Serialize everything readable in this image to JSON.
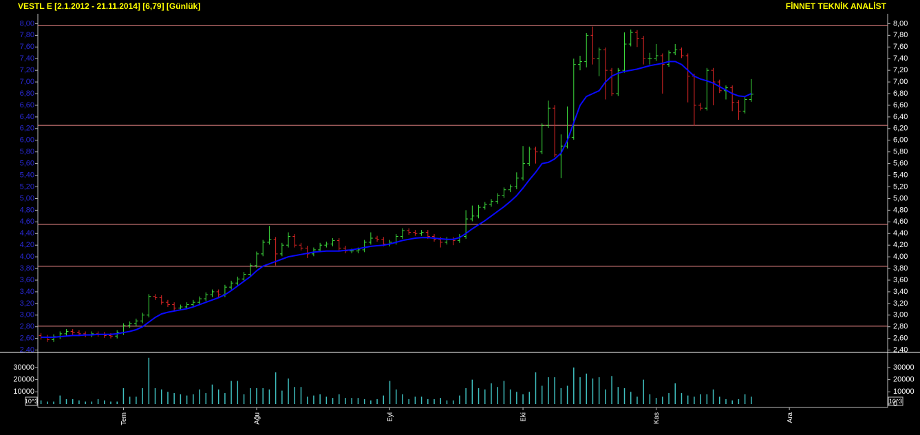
{
  "chart_data": [
    {
      "type": "ohlc",
      "title": "VESTL E  [2.1.2012 - 21.11.2014]  [6,79]  [Günlük]",
      "source": "FİNNET TEKNİK ANALİST",
      "categories": [
        null,
        null,
        null,
        null,
        null,
        null,
        null,
        null,
        null,
        null,
        null,
        null,
        null,
        "Tem",
        null,
        null,
        null,
        null,
        null,
        null,
        null,
        null,
        null,
        null,
        null,
        null,
        null,
        null,
        null,
        null,
        null,
        null,
        null,
        null,
        "Ağu",
        null,
        null,
        null,
        null,
        null,
        null,
        null,
        null,
        null,
        null,
        null,
        null,
        null,
        null,
        null,
        null,
        null,
        null,
        null,
        null,
        "Eyl",
        null,
        null,
        null,
        null,
        null,
        null,
        null,
        null,
        null,
        null,
        null,
        null,
        null,
        null,
        null,
        null,
        null,
        null,
        null,
        null,
        "Eki",
        null,
        null,
        null,
        null,
        null,
        null,
        null,
        null,
        null,
        null,
        null,
        null,
        null,
        null,
        null,
        null,
        null,
        null,
        null,
        null,
        "Kas",
        null,
        null,
        null,
        null,
        null,
        null,
        null,
        null,
        null,
        null,
        null,
        null,
        null,
        null,
        null,
        null,
        null,
        null,
        null,
        null,
        "Ara",
        null,
        null,
        null,
        null,
        null,
        null,
        null,
        null,
        null,
        null,
        null,
        null,
        null,
        null,
        null
      ],
      "open": [
        2.65,
        2.62,
        2.58,
        2.63,
        2.68,
        2.72,
        2.7,
        2.68,
        2.66,
        2.68,
        2.67,
        2.65,
        2.64,
        2.7,
        2.82,
        2.85,
        2.9,
        3.0,
        3.32,
        3.3,
        3.22,
        3.18,
        3.12,
        3.14,
        3.18,
        3.22,
        3.28,
        3.35,
        3.4,
        3.35,
        3.48,
        3.55,
        3.62,
        3.7,
        3.85,
        4.05,
        4.25,
        4.3,
        4.05,
        4.2,
        4.35,
        4.2,
        4.15,
        4.05,
        4.12,
        4.2,
        4.22,
        4.28,
        4.15,
        4.1,
        4.1,
        4.12,
        4.25,
        4.32,
        4.3,
        4.22,
        4.25,
        4.35,
        4.45,
        4.42,
        4.4,
        4.42,
        4.35,
        4.3,
        4.25,
        4.3,
        4.28,
        4.35,
        4.65,
        4.7,
        4.85,
        4.9,
        4.95,
        5.05,
        5.15,
        5.2,
        5.35,
        5.6,
        5.85,
        5.8,
        6.25,
        6.55,
        5.75,
        5.9,
        6.05,
        7.3,
        7.35,
        7.8,
        7.4,
        7.55,
        7.2,
        6.8,
        7.2,
        7.65,
        7.85,
        7.75,
        7.4,
        7.4,
        7.45,
        7.3,
        7.5,
        7.55,
        7.45,
        7.1,
        6.6,
        6.55,
        7.2,
        7.0,
        6.85,
        6.9,
        6.65,
        6.5,
        6.7,
        null,
        null,
        null,
        null,
        null,
        null,
        null,
        null,
        null,
        null,
        null,
        null,
        null,
        null,
        null,
        null,
        null,
        null,
        null,
        null,
        null
      ],
      "high": [
        2.69,
        2.66,
        2.67,
        2.72,
        2.76,
        2.76,
        2.74,
        2.72,
        2.72,
        2.72,
        2.71,
        2.69,
        2.74,
        2.86,
        2.89,
        2.94,
        3.04,
        3.36,
        3.36,
        3.34,
        3.26,
        3.22,
        3.18,
        3.22,
        3.26,
        3.32,
        3.39,
        3.44,
        3.44,
        3.52,
        3.59,
        3.66,
        3.74,
        3.89,
        4.09,
        4.29,
        4.53,
        4.34,
        4.24,
        4.42,
        4.39,
        4.24,
        4.19,
        4.16,
        4.24,
        4.26,
        4.32,
        4.32,
        4.19,
        4.14,
        4.16,
        4.29,
        4.42,
        4.36,
        4.34,
        4.29,
        4.39,
        4.49,
        4.49,
        4.46,
        4.46,
        4.46,
        4.39,
        4.34,
        4.34,
        4.34,
        4.39,
        4.8,
        4.88,
        4.89,
        4.94,
        4.99,
        5.09,
        5.19,
        5.24,
        5.45,
        5.9,
        5.89,
        5.89,
        6.29,
        6.68,
        6.6,
        6.1,
        6.58,
        7.4,
        7.45,
        7.84,
        7.95,
        7.59,
        7.59,
        7.24,
        7.24,
        7.85,
        7.9,
        7.89,
        7.79,
        7.5,
        7.65,
        7.49,
        7.54,
        7.65,
        7.59,
        7.49,
        7.14,
        6.64,
        7.24,
        7.24,
        7.04,
        6.94,
        6.94,
        6.69,
        6.74,
        7.05,
        null,
        null,
        null,
        null,
        null,
        null,
        null,
        null,
        null,
        null,
        null,
        null,
        null,
        null,
        null,
        null,
        null,
        null,
        null,
        null,
        null
      ],
      "low": [
        2.58,
        2.54,
        2.54,
        2.59,
        2.64,
        2.66,
        2.64,
        2.62,
        2.62,
        2.63,
        2.61,
        2.6,
        2.6,
        2.66,
        2.78,
        2.81,
        2.86,
        2.96,
        3.26,
        3.18,
        3.14,
        3.08,
        3.08,
        3.1,
        3.14,
        3.18,
        3.24,
        3.31,
        3.31,
        3.31,
        3.44,
        3.51,
        3.58,
        3.66,
        3.81,
        4.01,
        4.21,
        3.85,
        4.01,
        4.16,
        4.16,
        4.11,
        3.98,
        4.01,
        4.08,
        4.16,
        4.18,
        4.11,
        4.06,
        4.06,
        4.06,
        4.08,
        4.21,
        4.26,
        4.18,
        4.18,
        4.21,
        4.31,
        4.38,
        4.36,
        4.36,
        4.31,
        4.26,
        4.16,
        4.21,
        4.2,
        4.24,
        4.31,
        4.61,
        4.66,
        4.81,
        4.86,
        4.91,
        5.01,
        5.11,
        5.16,
        5.31,
        5.56,
        5.6,
        5.76,
        6.21,
        5.71,
        5.35,
        5.86,
        6.01,
        7.2,
        7.25,
        7.3,
        7.1,
        6.7,
        6.76,
        6.76,
        7.16,
        7.61,
        7.6,
        7.3,
        7.3,
        7.36,
        6.8,
        7.26,
        7.46,
        7.41,
        6.65,
        6.25,
        6.51,
        6.51,
        6.6,
        6.81,
        6.7,
        6.5,
        6.35,
        6.46,
        6.66,
        null,
        null,
        null,
        null,
        null,
        null,
        null,
        null,
        null,
        null,
        null,
        null,
        null,
        null,
        null,
        null,
        null,
        null,
        null,
        null,
        null
      ],
      "close": [
        2.62,
        2.58,
        2.63,
        2.68,
        2.72,
        2.7,
        2.68,
        2.66,
        2.68,
        2.67,
        2.65,
        2.64,
        2.7,
        2.82,
        2.85,
        2.9,
        3.0,
        3.32,
        3.3,
        3.22,
        3.18,
        3.12,
        3.14,
        3.18,
        3.22,
        3.28,
        3.35,
        3.4,
        3.35,
        3.48,
        3.55,
        3.62,
        3.7,
        3.85,
        4.05,
        4.25,
        4.3,
        4.05,
        4.2,
        4.35,
        4.2,
        4.15,
        4.05,
        4.12,
        4.2,
        4.22,
        4.28,
        4.15,
        4.1,
        4.1,
        4.12,
        4.25,
        4.32,
        4.3,
        4.22,
        4.25,
        4.35,
        4.45,
        4.42,
        4.4,
        4.42,
        4.35,
        4.3,
        4.25,
        4.3,
        4.28,
        4.35,
        4.65,
        4.7,
        4.85,
        4.9,
        4.95,
        5.05,
        5.15,
        5.2,
        5.35,
        5.6,
        5.85,
        5.8,
        6.25,
        6.55,
        5.75,
        5.9,
        6.05,
        7.3,
        7.35,
        7.8,
        7.4,
        7.55,
        7.2,
        6.8,
        7.2,
        7.65,
        7.85,
        7.75,
        7.4,
        7.4,
        7.45,
        7.3,
        7.5,
        7.55,
        7.45,
        7.1,
        6.6,
        6.55,
        7.2,
        7.0,
        6.85,
        6.9,
        6.65,
        6.5,
        6.7,
        6.79,
        null,
        null,
        null,
        null,
        null,
        null,
        null,
        null,
        null,
        null,
        null,
        null,
        null,
        null,
        null,
        null,
        null,
        null,
        null,
        null,
        null
      ],
      "up_color": "#3ee03e",
      "down_color": "#e02626",
      "moving_average": {
        "color": "#0a0aff",
        "values": [
          2.62,
          2.62,
          2.62,
          2.63,
          2.64,
          2.65,
          2.65,
          2.66,
          2.66,
          2.67,
          2.67,
          2.67,
          2.68,
          2.7,
          2.72,
          2.75,
          2.8,
          2.88,
          2.96,
          3.02,
          3.05,
          3.07,
          3.09,
          3.11,
          3.14,
          3.18,
          3.22,
          3.26,
          3.3,
          3.35,
          3.42,
          3.5,
          3.58,
          3.66,
          3.76,
          3.84,
          3.88,
          3.92,
          3.96,
          4.0,
          4.02,
          4.04,
          4.06,
          4.08,
          4.09,
          4.1,
          4.1,
          4.1,
          4.11,
          4.12,
          4.14,
          4.16,
          4.18,
          4.19,
          4.2,
          4.22,
          4.25,
          4.28,
          4.3,
          4.32,
          4.33,
          4.33,
          4.32,
          4.31,
          4.3,
          4.3,
          4.33,
          4.4,
          4.48,
          4.55,
          4.62,
          4.7,
          4.78,
          4.86,
          4.95,
          5.05,
          5.18,
          5.32,
          5.45,
          5.6,
          5.62,
          5.68,
          5.78,
          6.0,
          6.3,
          6.6,
          6.75,
          6.8,
          6.85,
          7.0,
          7.1,
          7.15,
          7.18,
          7.2,
          7.22,
          7.25,
          7.28,
          7.3,
          7.32,
          7.35,
          7.35,
          7.3,
          7.2,
          7.1,
          7.05,
          7.02,
          6.98,
          6.92,
          6.86,
          6.8,
          6.76,
          6.75,
          6.8,
          null,
          null,
          null,
          null,
          null,
          null,
          null,
          null,
          null,
          null,
          null,
          null,
          null,
          null,
          null,
          null,
          null,
          null,
          null,
          null,
          null
        ]
      },
      "horizontal_lines": {
        "color": "#f08a8a",
        "values": [
          7.965,
          6.255,
          4.557,
          3.837,
          2.81
        ]
      },
      "ylim": [
        2.36,
        8.17
      ],
      "yticks": [
        {
          "value": 2.4,
          "label": "2,40"
        },
        {
          "value": 2.6,
          "label": "2,60"
        },
        {
          "value": 2.8,
          "label": "2,80"
        },
        {
          "value": 3.0,
          "label": "3,00"
        },
        {
          "value": 3.2,
          "label": "3,20"
        },
        {
          "value": 3.4,
          "label": "3,40"
        },
        {
          "value": 3.6,
          "label": "3,60"
        },
        {
          "value": 3.8,
          "label": "3,80"
        },
        {
          "value": 4.0,
          "label": "4,00"
        },
        {
          "value": 4.2,
          "label": "4,20"
        },
        {
          "value": 4.4,
          "label": "4,40"
        },
        {
          "value": 4.6,
          "label": "4,60"
        },
        {
          "value": 4.8,
          "label": "4,80"
        },
        {
          "value": 5.0,
          "label": "5,00"
        },
        {
          "value": 5.2,
          "label": "5,20"
        },
        {
          "value": 5.4,
          "label": "5,40"
        },
        {
          "value": 5.6,
          "label": "5,60"
        },
        {
          "value": 5.8,
          "label": "5,80"
        },
        {
          "value": 6.0,
          "label": "6,00"
        },
        {
          "value": 6.2,
          "label": "6,20"
        },
        {
          "value": 6.4,
          "label": "6,40"
        },
        {
          "value": 6.6,
          "label": "6,60"
        },
        {
          "value": 6.8,
          "label": "6,80"
        },
        {
          "value": 7.0,
          "label": "7,00"
        },
        {
          "value": 7.2,
          "label": "7,20"
        },
        {
          "value": 7.4,
          "label": "7,40"
        },
        {
          "value": 7.6,
          "label": "7,60"
        },
        {
          "value": 7.8,
          "label": "7,80"
        },
        {
          "value": 8.0,
          "label": "8,00"
        }
      ]
    },
    {
      "type": "bar",
      "color": "#3fbfbf",
      "unit_label": "10^3",
      "values": [
        3000,
        2000,
        2000,
        7000,
        4000,
        4000,
        3000,
        2000,
        2000,
        4000,
        3000,
        2000,
        2000,
        13000,
        6000,
        6000,
        13000,
        38000,
        13000,
        12000,
        10000,
        9000,
        8000,
        7000,
        8000,
        12000,
        9000,
        16000,
        12000,
        9000,
        19000,
        19000,
        8000,
        13000,
        13000,
        13000,
        12000,
        26000,
        11000,
        21000,
        14000,
        14000,
        6000,
        7000,
        8000,
        6000,
        5000,
        8000,
        5000,
        5000,
        5000,
        4000,
        3000,
        4000,
        7000,
        19000,
        12000,
        8000,
        4000,
        6000,
        6000,
        4000,
        4000,
        5000,
        3000,
        3000,
        7000,
        13000,
        20000,
        13000,
        12000,
        17000,
        14000,
        19000,
        12000,
        10000,
        8000,
        10000,
        26000,
        15000,
        22000,
        22000,
        13000,
        15000,
        30000,
        22000,
        25000,
        21000,
        22000,
        12000,
        23000,
        14000,
        13000,
        10000,
        6000,
        20000,
        8000,
        5000,
        6000,
        9000,
        17000,
        9000,
        7000,
        6000,
        8000,
        8000,
        12000,
        6000,
        4000,
        3000,
        4000,
        8000,
        6000,
        null,
        null,
        null,
        null,
        null,
        null,
        null,
        null,
        null,
        null,
        null,
        null,
        null,
        null,
        null,
        null,
        null,
        null,
        null,
        null,
        null
      ],
      "ylim": [
        0,
        40700
      ],
      "yticks": [
        0,
        10000,
        20000,
        30000
      ]
    }
  ]
}
